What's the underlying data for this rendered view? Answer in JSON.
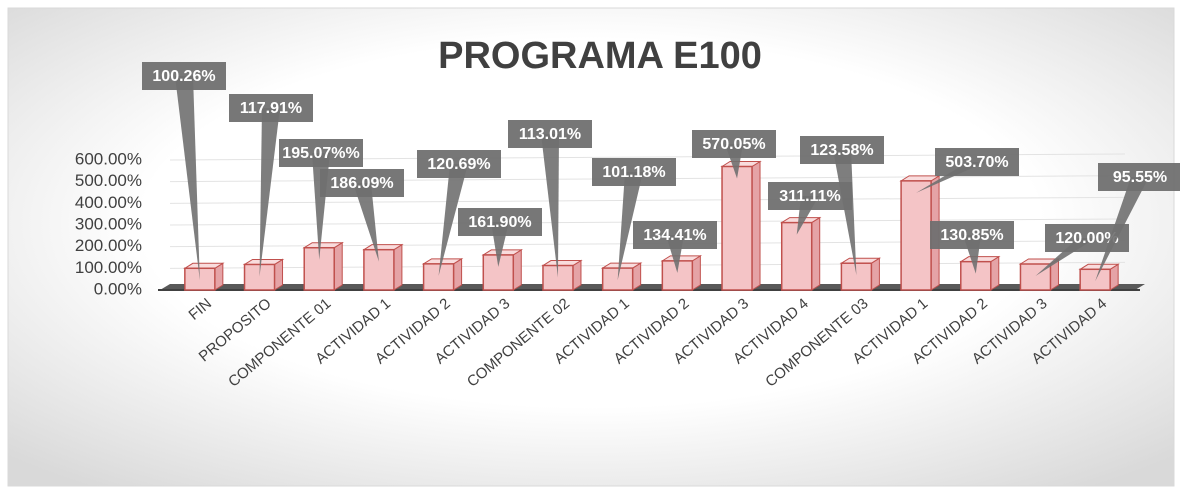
{
  "chart_data": {
    "type": "bar3d",
    "title": "PROGRAMA E100",
    "categories": [
      "FIN",
      "PROPOSITO",
      "COMPONENTE 01",
      "ACTIVIDAD 1",
      "ACTIVIDAD 2",
      "ACTIVIDAD 3",
      "COMPONENTE 02",
      "ACTIVIDAD 1",
      "ACTIVIDAD 2",
      "ACTIVIDAD 3",
      "ACTIVIDAD 4",
      "COMPONENTE 03",
      "ACTIVIDAD 1",
      "ACTIVIDAD 2",
      "ACTIVIDAD 3",
      "ACTIVIDAD 4"
    ],
    "values": [
      100.26,
      117.91,
      195.07,
      186.09,
      120.69,
      161.9,
      113.01,
      101.18,
      134.41,
      570.05,
      311.11,
      123.58,
      503.7,
      130.85,
      120.0,
      95.55
    ],
    "value_labels": [
      "100.26%",
      "117.91%",
      "195.07%%",
      "186.09%",
      "120.69%",
      "161.90%",
      "113.01%",
      "101.18%",
      "134.41%",
      "570.05%",
      "311.11%",
      "123.58%",
      "503.70%",
      "130.85%",
      "120.00%",
      "95.55%"
    ],
    "color": "#f4c4c6",
    "ylim": [
      0,
      600
    ],
    "yticks": [
      {
        "value": 0,
        "label": "0.00%"
      },
      {
        "value": 100,
        "label": "100.00%"
      },
      {
        "value": 200,
        "label": "200.00%"
      },
      {
        "value": 300,
        "label": "300.00%"
      },
      {
        "value": 400,
        "label": "400.00%"
      },
      {
        "value": 500,
        "label": "500.00%"
      },
      {
        "value": 600,
        "label": "600.00%"
      }
    ],
    "grid": true
  }
}
